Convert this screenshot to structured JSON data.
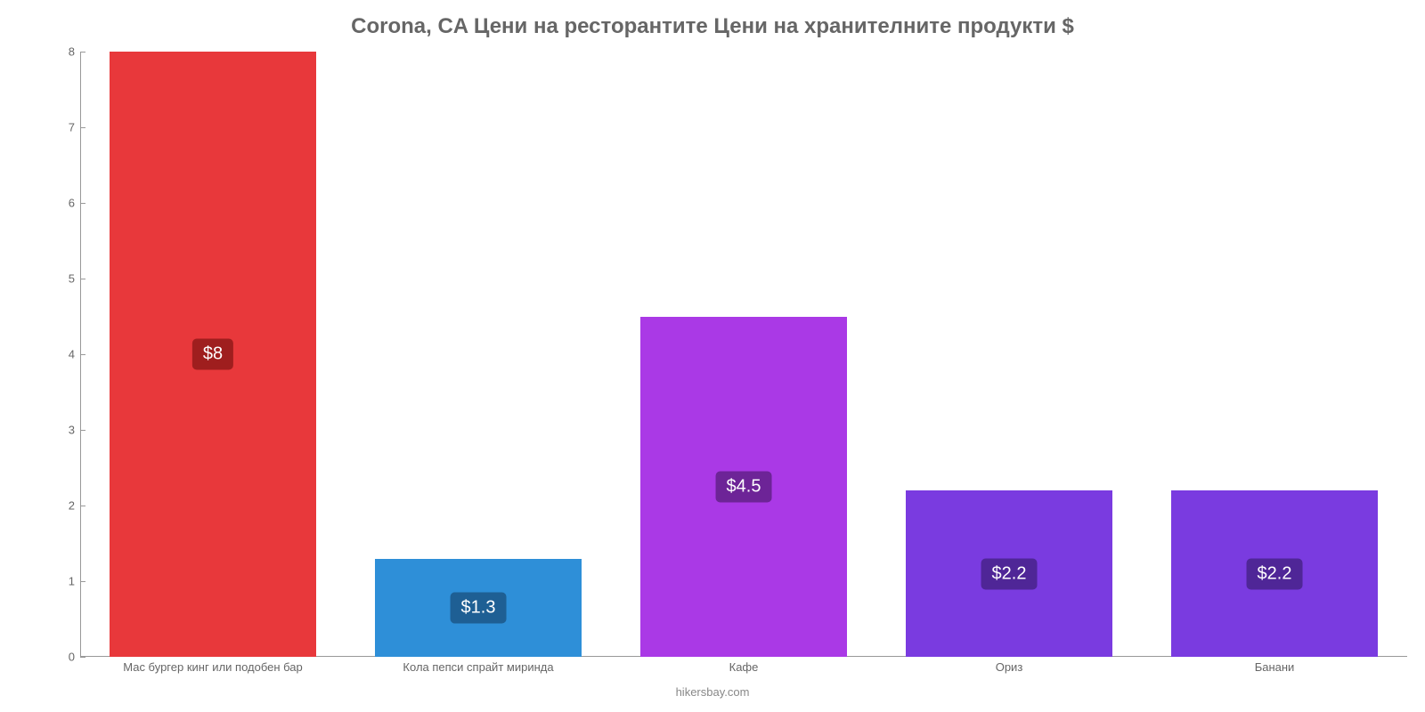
{
  "chart": {
    "type": "bar",
    "title": "Corona, CA Цени на ресторантите Цени на хранителните продукти $",
    "title_color": "#666666",
    "title_fontsize": 24,
    "background_color": "#ffffff",
    "axis_color": "#999999",
    "label_color": "#666666",
    "label_fontsize": 13,
    "ylim": [
      0,
      8
    ],
    "ytick_step": 1,
    "yticks": [
      0,
      1,
      2,
      3,
      4,
      5,
      6,
      7,
      8
    ],
    "bar_width_ratio": 0.78,
    "categories": [
      "Мас бургер кинг или подобен бар",
      "Кола пепси спрайт миринда",
      "Кафе",
      "Ориз",
      "Банани"
    ],
    "values": [
      8,
      1.3,
      4.5,
      2.2,
      2.2
    ],
    "value_labels": [
      "$8",
      "$1.3",
      "$4.5",
      "$2.2",
      "$2.2"
    ],
    "bar_colors": [
      "#e8383b",
      "#2e8fd8",
      "#aa39e6",
      "#7a3be0",
      "#7a3be0"
    ],
    "badge_colors": [
      "#9f1e1e",
      "#1e5f94",
      "#6d2497",
      "#4f2697",
      "#4f2697"
    ],
    "badge_text_color": "#ffffff",
    "badge_fontsize": 20,
    "footer": "hikersbay.com",
    "footer_color": "#888888"
  }
}
